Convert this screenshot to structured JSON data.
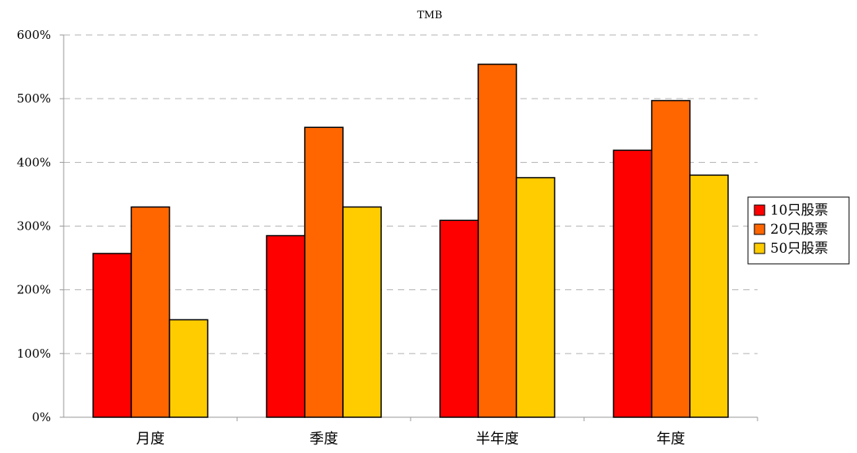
{
  "chart_data": {
    "type": "bar",
    "title": "TMB",
    "xlabel": "",
    "ylabel": "",
    "ylim": [
      0,
      6
    ],
    "yticks": [
      0,
      1,
      2,
      3,
      4,
      5,
      6
    ],
    "ytick_labels": [
      "0%",
      "100%",
      "200%",
      "300%",
      "400%",
      "500%",
      "600%"
    ],
    "grid": true,
    "legend_position": "right",
    "categories": [
      "月度",
      "季度",
      "半年度",
      "年度"
    ],
    "series": [
      {
        "name": "10只股票",
        "color": "#ff0000",
        "values": [
          2.57,
          2.85,
          3.09,
          4.19
        ]
      },
      {
        "name": "20只股票",
        "color": "#ff6600",
        "values": [
          3.3,
          4.55,
          5.54,
          4.97
        ]
      },
      {
        "name": "50只股票",
        "color": "#ffcc00",
        "values": [
          1.53,
          3.3,
          3.76,
          3.8
        ]
      }
    ]
  }
}
